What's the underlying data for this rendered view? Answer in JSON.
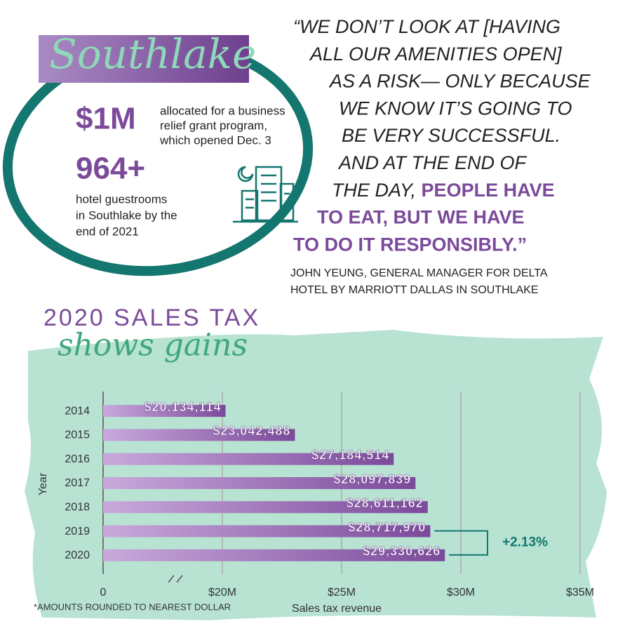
{
  "southlake": {
    "title": "Southlake",
    "stat1": {
      "figure": "$1M",
      "lines": [
        "allocated for a business",
        "relief grant program,",
        "which opened Dec. 3"
      ]
    },
    "stat2": {
      "figure": "964+",
      "lines": [
        "hotel guestrooms",
        "in Southlake by the",
        "end of 2021"
      ]
    }
  },
  "quote": {
    "lines": [
      {
        "plain": "“WE DON’T LOOK AT [HAVING"
      },
      {
        "plain": "ALL OUR AMENITIES OPEN]"
      },
      {
        "plain": "AS A RISK— ONLY BECAUSE"
      },
      {
        "plain": "WE KNOW IT’S GOING TO"
      },
      {
        "plain": "BE VERY SUCCESSFUL."
      },
      {
        "plain": "AND AT THE END OF"
      },
      {
        "plain": "THE DAY, ",
        "bold": "PEOPLE HAVE"
      },
      {
        "bold": "TO EAT, BUT WE HAVE"
      },
      {
        "bold": "TO DO IT RESPONSIBLY.”"
      }
    ],
    "attribution": [
      "JOHN YEUNG, GENERAL MANAGER FOR DELTA",
      "HOTEL BY MARRIOTT DALLAS IN SOUTHLAKE"
    ]
  },
  "chart_data": {
    "type": "bar",
    "orientation": "horizontal",
    "title": "2020 SALES TAX",
    "subtitle": "shows gains",
    "categories": [
      "2014",
      "2015",
      "2016",
      "2017",
      "2018",
      "2019",
      "2020"
    ],
    "values": [
      20134114,
      23042488,
      27184514,
      28097839,
      28611162,
      28717970,
      29330626
    ],
    "value_labels": [
      "$20,134,114",
      "$23,042,488",
      "$27,184,514",
      "$28,097,839",
      "$28,611,162",
      "$28,717,970",
      "$29,330,626"
    ],
    "color": "#7b4a9a",
    "xlabel": "Sales tax revenue",
    "ylabel": "Year",
    "xlim": [
      0,
      35000000
    ],
    "xbreak": [
      0,
      15000000
    ],
    "xticks": [
      0,
      {
        "value": 20000000,
        "label": "$20M"
      },
      {
        "value": 25000000,
        "label": "$25M"
      },
      {
        "value": 30000000,
        "label": "$30M"
      },
      {
        "value": 35000000,
        "label": "$35M"
      }
    ],
    "grid": true,
    "annotation": "+2.13%",
    "note": "*AMOUNTS ROUNDED TO NEAREST DOLLAR"
  }
}
